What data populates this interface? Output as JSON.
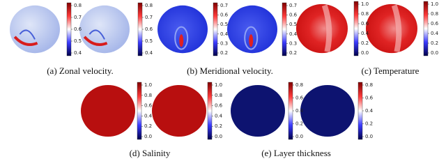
{
  "panels": [
    {
      "caption": "(a) Zonal velocity.",
      "colorbar_ticks": [
        "0.8",
        "0.7",
        "0.6",
        "0.5",
        "0.4"
      ]
    },
    {
      "caption": "(b) Meridional velocity.",
      "colorbar_ticks": [
        "0.7",
        "0.6",
        "0.5",
        "0.4",
        "0.3",
        "0.2"
      ]
    },
    {
      "caption": "(c) Temperature",
      "colorbar_ticks": [
        "1.0",
        "0.8",
        "0.6",
        "0.4",
        "0.2",
        "0.0"
      ]
    },
    {
      "caption": "(d) Salinity",
      "colorbar_ticks": [
        "1.0",
        "0.8",
        "0.6",
        "0.4",
        "0.2",
        "0.0"
      ]
    },
    {
      "caption": "(e) Layer thickness",
      "colorbar_ticks": [
        "0.8",
        "0.6",
        "0.4",
        "0.2",
        "0.0"
      ]
    }
  ]
}
